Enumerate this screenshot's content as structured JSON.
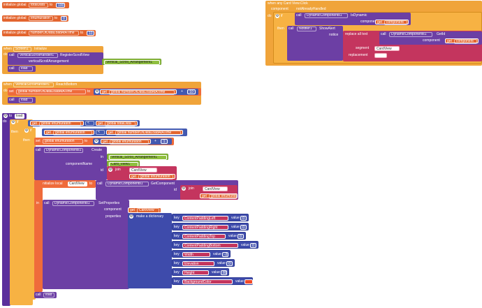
{
  "colors": {
    "global": "#e3652f",
    "event": "#f0a43a",
    "control": "#f7b243",
    "component": "#6c3fa4",
    "math": "#4359b0",
    "text": "#c4355e",
    "dict": "#3e4bab",
    "arrangement": "#8fbf3f"
  },
  "globals": [
    {
      "label": "initialize global",
      "name": "totalData",
      "to": "to",
      "value": "100"
    },
    {
      "label": "initialize global",
      "name": "enumuration",
      "to": "to",
      "value": "0"
    },
    {
      "label": "initialize global",
      "name": "numberOfDataLoadAtATime",
      "to": "to",
      "value": "10"
    }
  ],
  "screen_init": {
    "when": "when",
    "component": "Screen1",
    "event": "Initialize",
    "do": "do",
    "call": "call",
    "handler": "VerticalScrollHandler1",
    "method": "RegisterScrollView",
    "param": "verticalScrollArrangement",
    "arrangement": "Vertical_Scroll_Arrangement1",
    "call2": "call",
    "proc": "load"
  },
  "reach_bottom": {
    "when": "when",
    "component": "VerticalScrollHandler1",
    "event": "ReachBottom",
    "do": "do",
    "set": "set",
    "var": "global numberOfDataLoadAtATime",
    "to": "to",
    "get": "get",
    "get_var": "global numberOfDataLoadAtATime",
    "op": "+",
    "value": "10",
    "call": "call",
    "proc": "load"
  },
  "proc": {
    "to": "to",
    "name": "load",
    "do": "do",
    "if": "if",
    "get1": "get",
    "var1": "global enumuration",
    "op1": "<",
    "get2": "get",
    "var2": "global totalData",
    "then": "then",
    "if2": "if",
    "get3": "get",
    "var3": "global enumuration",
    "op2": "<",
    "get4": "get",
    "var4": "global numberOfDataLoadAtATime",
    "then2": "then",
    "set": "set",
    "set_var": "global enumuration",
    "set_to": "to",
    "get5": "get",
    "var5": "global enumuration",
    "op3": "+",
    "inc": "1",
    "call_create": "call",
    "dyn": "DynamicComponents1",
    "create": "Create",
    "in": "in",
    "in_val": "Vertical_Scroll_Arrangement1",
    "compname": "componentName",
    "compname_val": "Card_View1",
    "id": "id",
    "join": "join",
    "id_text": "CardView",
    "get6": "get",
    "var6": "global enumuration",
    "init_local": "initialize local",
    "local_name": "CardView",
    "local_to": "to",
    "call_get": "call",
    "dyn2": "DynamicComponents1",
    "getcomp": "GetComponent",
    "id2": "id",
    "join2": "join",
    "id_text2": "CardView",
    "get7": "get",
    "var7": "global enumuration",
    "in2": "in",
    "call_set": "call",
    "dyn3": "DynamicComponents1",
    "setprops": "SetProperties",
    "component": "component",
    "get8": "get",
    "var8": "CardView",
    "properties": "properties",
    "make_dict": "make a dictionary",
    "pairs": [
      {
        "key": "key",
        "k": "ContentPaddingLeft",
        "value": "value",
        "v": "0"
      },
      {
        "key": "key",
        "k": "ContentPaddingRight",
        "value": "value",
        "v": "0"
      },
      {
        "key": "key",
        "k": "ContentPaddingTop",
        "value": "value",
        "v": "0"
      },
      {
        "key": "key",
        "k": "ContentPaddingBottom",
        "value": "value",
        "v": "0"
      },
      {
        "key": "key",
        "k": "Width",
        "value": "value",
        "v": "-2"
      },
      {
        "key": "key",
        "k": "Elevation",
        "value": "value",
        "v": "0"
      },
      {
        "key": "key",
        "k": "Height",
        "value": "value",
        "v": "80"
      },
      {
        "key": "key",
        "k": "BackgroundColor",
        "value": "value",
        "v": ""
      }
    ],
    "call_load": "call",
    "load": "load"
  },
  "card_click": {
    "when": "when any Card View.Click",
    "component": "component",
    "not_handled": "notAlreadyHandled",
    "do": "do",
    "if": "if",
    "call": "call",
    "dyn": "DynamicComponents1",
    "isdyn": "IsDynamic",
    "component_lbl": "component",
    "get": "get",
    "comp": "component",
    "then": "then",
    "call2": "call",
    "notifier": "Notifier1",
    "show": "ShowAlert",
    "notice": "notice",
    "replace": "replace all text",
    "call3": "call",
    "dyn2": "DynamicComponents1",
    "getid": "GetId",
    "component_lbl2": "component",
    "get2": "get",
    "comp2": "component",
    "segment": "segment",
    "seg_text": "CardView",
    "replacement": "replacement",
    "repl_text": ""
  }
}
